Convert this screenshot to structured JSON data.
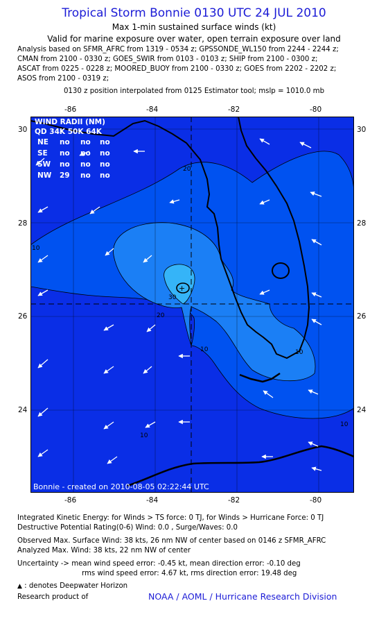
{
  "header": {
    "title": "Tropical Storm Bonnie 0130 UTC 24 JUL 2010",
    "subtitle": "Max 1-min sustained surface winds (kt)",
    "valid": "Valid for marine exposure over water, open terrain exposure over land",
    "analysis_lines": [
      "Analysis based on SFMR_AFRC from 1319 - 0534 z; GPSSONDE_WL150 from 2244 - 2244 z;",
      "CMAN from 2100 - 0330 z; GOES_SWIR from 0103 - 0103 z; SHIP from 2100 - 0300 z;",
      "ASCAT from 0225 - 0228 z; MOORED_BUOY from 2100 - 0330 z; GOES from 2202 - 2202 z;",
      "ASOS from 2100 - 0319 z;"
    ],
    "position_note": "0130 z position interpolated from 0125 Estimator tool; mslp = 1010.0 mb"
  },
  "map": {
    "lon_ticks": [
      "-86",
      "-84",
      "-82",
      "-80"
    ],
    "lat_ticks": [
      "30",
      "28",
      "26",
      "24"
    ],
    "lon_range": [
      -87.1,
      -79.1
    ],
    "lat_range": [
      22.2,
      30.3
    ],
    "center": {
      "lon": -82.85,
      "lat": 26.3
    },
    "wind_radii": {
      "title": "WIND RADII (NM)",
      "header": "QD 34K 50K 64K",
      "rows": [
        {
          "qd": "NE",
          "r34": "no",
          "r50": "no",
          "r64": "no"
        },
        {
          "qd": "SE",
          "r34": "no",
          "r50": "no",
          "r64": "no"
        },
        {
          "qd": "SW",
          "r34": "no",
          "r50": "no",
          "r64": "no"
        },
        {
          "qd": "NW",
          "r34": "29",
          "r50": "no",
          "r64": "no"
        }
      ]
    },
    "contour_labels": [
      "10",
      "20",
      "30",
      "20",
      "10",
      "10",
      "10",
      "10"
    ],
    "credit": "Bonnie - created on 2010-08-05 02:22:44 UTC",
    "colors": {
      "ocean_dark": "#0a2ee6",
      "band_10": "#0052f0",
      "band_20": "#1b7ff5",
      "band_30": "#35b4f8",
      "land": "#000000"
    }
  },
  "footer": {
    "ike": "Integrated Kinetic Energy:  for Winds > TS force: 0 TJ,  for Winds > Hurricane Force: 0 TJ",
    "dpr": "Destructive Potential Rating(0-6)   Wind: 0.0 , Surge/Waves: 0.0",
    "observed": "Observed Max. Surface Wind: 38 kts, 26 nm NW of center based on 0146 z SFMR_AFRC",
    "analyzed": "Analyzed Max. Wind: 38 kts, 22 nm NW of center",
    "uncertainty1": "Uncertainty -> mean wind speed error:  -0.45 kt,   mean direction error:  -0.10 deg",
    "uncertainty2": "rms wind speed error: 4.67 kt,   rms direction error: 19.48 deg",
    "deepwater": ": denotes Deepwater Horizon",
    "research": "Research product of",
    "research_link": "NOAA / AOML / Hurricane Research Division"
  }
}
